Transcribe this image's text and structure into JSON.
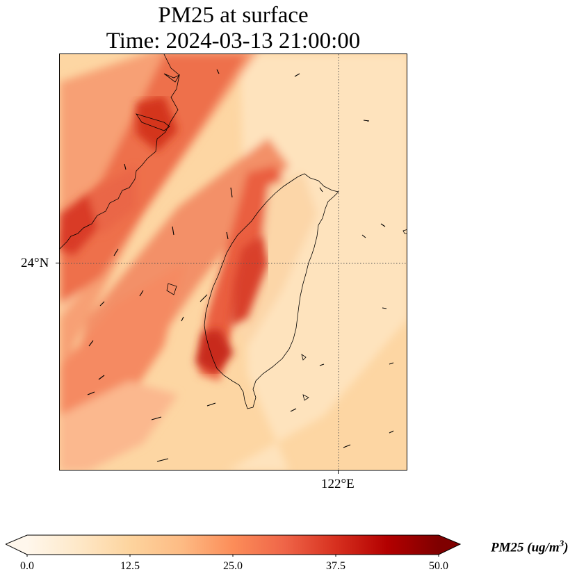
{
  "title": {
    "line1": "PM25 at surface",
    "line2": "Time: 2024-03-13 21:00:00"
  },
  "map": {
    "lat_label": "24°N",
    "lon_label": "122°E",
    "coastline_color": "#000000",
    "gridline_style": "dotted"
  },
  "colorbar": {
    "title_main": "PM25 (ug/m",
    "title_exp": "3",
    "title_end": ")",
    "ticks": [
      "0.0",
      "12.5",
      "25.0",
      "37.5",
      "50.0"
    ],
    "colormap": "OrRd",
    "colors": [
      "#fff7ec",
      "#fee8c8",
      "#fdd49e",
      "#fdbb84",
      "#fc8d59",
      "#ef6548",
      "#d7301f",
      "#b30000",
      "#7f0000"
    ],
    "extend": "both"
  },
  "field_colors": {
    "background": "#fdd7a5",
    "light_band": "#fee6c4",
    "orange_band": "#f8a579",
    "red_core": "#e4553a",
    "dark_red": "#c92a1f"
  }
}
